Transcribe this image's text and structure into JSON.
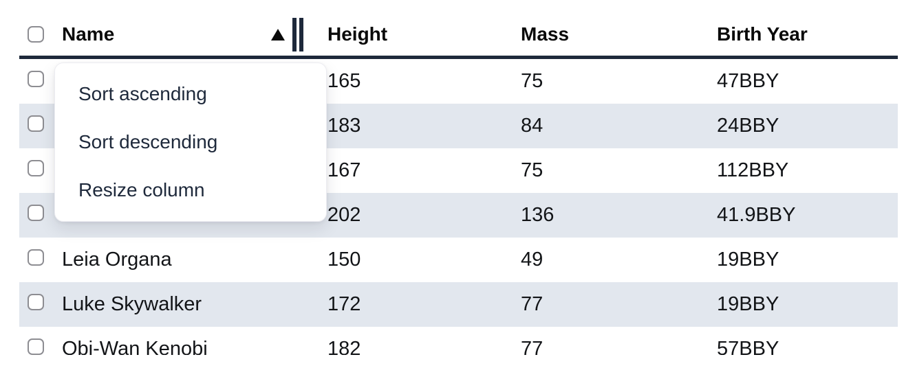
{
  "table": {
    "columns": [
      {
        "key": "name",
        "label": "Name"
      },
      {
        "key": "height",
        "label": "Height"
      },
      {
        "key": "mass",
        "label": "Mass"
      },
      {
        "key": "birth_year",
        "label": "Birth Year"
      }
    ],
    "sort": {
      "column": "Name",
      "direction": "ascending",
      "indicator_icon": "triangle-up"
    },
    "select_all_checked": false,
    "rows": [
      {
        "name": "",
        "height": "165",
        "mass": "75",
        "birth_year": "47BBY",
        "checked": false
      },
      {
        "name": "",
        "height": "183",
        "mass": "84",
        "birth_year": "24BBY",
        "checked": false
      },
      {
        "name": "",
        "height": "167",
        "mass": "75",
        "birth_year": "112BBY",
        "checked": false
      },
      {
        "name": "",
        "height": "202",
        "mass": "136",
        "birth_year": "41.9BBY",
        "checked": false
      },
      {
        "name": "Leia Organa",
        "height": "150",
        "mass": "49",
        "birth_year": "19BBY",
        "checked": false
      },
      {
        "name": "Luke Skywalker",
        "height": "172",
        "mass": "77",
        "birth_year": "19BBY",
        "checked": false
      },
      {
        "name": "Obi-Wan Kenobi",
        "height": "182",
        "mass": "77",
        "birth_year": "57BBY",
        "checked": false
      }
    ]
  },
  "context_menu": {
    "items": [
      "Sort ascending",
      "Sort descending",
      "Resize column"
    ]
  },
  "icons": {
    "sort_ascending": "triangle-up-icon",
    "column_resize": "double-bar-icon"
  },
  "colors": {
    "stripe": "#e2e7ee",
    "header_border": "#1e293b",
    "menu_text": "#1e293b",
    "body_text": "#121417",
    "checkbox_border": "#8d8d92"
  }
}
